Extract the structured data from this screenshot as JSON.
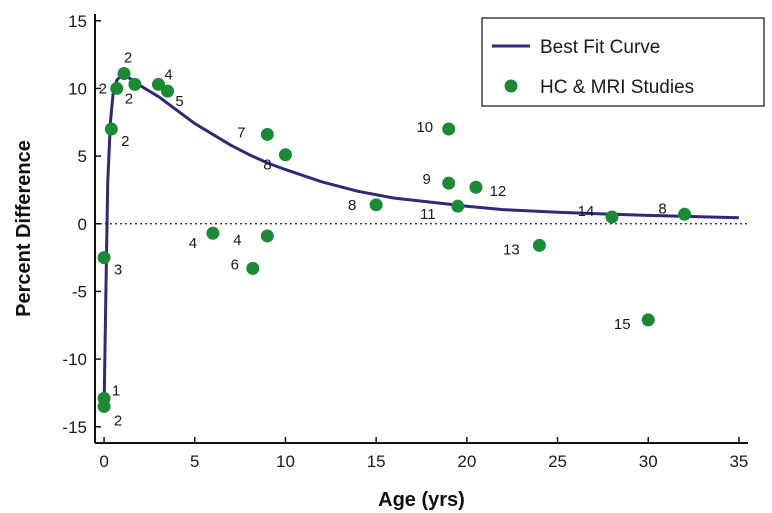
{
  "chart_data": {
    "type": "scatter",
    "xlabel": "Age (yrs)",
    "ylabel": "Percent Difference",
    "xlim": [
      -0.5,
      35.5
    ],
    "ylim": [
      -16.2,
      15.5
    ],
    "x_ticks": [
      0,
      5,
      10,
      15,
      20,
      25,
      30,
      35
    ],
    "y_ticks": [
      -15,
      -10,
      -5,
      0,
      5,
      10,
      15
    ],
    "zero_line": true,
    "grid": false,
    "legend_position": "top-right",
    "colors": {
      "curve": "#2e2a78",
      "points": "#1a8a35",
      "axis": "#111111"
    },
    "series": [
      {
        "name": "Best Fit Curve",
        "kind": "line",
        "x": [
          0,
          0.1,
          0.2,
          0.35,
          0.5,
          0.7,
          0.9,
          1.2,
          1.6,
          2,
          3,
          4,
          5,
          6,
          7,
          8,
          9,
          10,
          12,
          14,
          16,
          18,
          20,
          22,
          25,
          28,
          31,
          35
        ],
        "y": [
          -13.5,
          -5,
          3,
          7.5,
          9.6,
          10.6,
          10.9,
          10.9,
          10.6,
          10.2,
          9.4,
          8.4,
          7.4,
          6.6,
          5.8,
          5.1,
          4.5,
          4.0,
          3.1,
          2.4,
          1.9,
          1.6,
          1.3,
          1.05,
          0.85,
          0.7,
          0.58,
          0.45
        ]
      },
      {
        "name": "HC & MRI Studies",
        "kind": "scatter",
        "points": [
          {
            "x": 0.7,
            "y": 10,
            "label": "2"
          },
          {
            "x": 1.1,
            "y": 11.1,
            "label": "2"
          },
          {
            "x": 1.7,
            "y": 10.3,
            "label": "2"
          },
          {
            "x": 3,
            "y": 10.3,
            "label": "4"
          },
          {
            "x": 3.5,
            "y": 9.8,
            "label": "5"
          },
          {
            "x": 0.4,
            "y": 7,
            "label": "2"
          },
          {
            "x": 0,
            "y": -2.5,
            "label": "3"
          },
          {
            "x": 0,
            "y": -12.9,
            "label": "1"
          },
          {
            "x": 0,
            "y": -13.5,
            "label": "2"
          },
          {
            "x": 6,
            "y": -0.7,
            "label": "4"
          },
          {
            "x": 9,
            "y": 6.6,
            "label": "7"
          },
          {
            "x": 10,
            "y": 5.1,
            "label": "8"
          },
          {
            "x": 9,
            "y": -0.9,
            "label": "4"
          },
          {
            "x": 8.2,
            "y": -3.3,
            "label": "6"
          },
          {
            "x": 15,
            "y": 1.4,
            "label": "8"
          },
          {
            "x": 19,
            "y": 7,
            "label": "10"
          },
          {
            "x": 19,
            "y": 3,
            "label": "9"
          },
          {
            "x": 20.5,
            "y": 2.7,
            "label": "12"
          },
          {
            "x": 19.5,
            "y": 1.3,
            "label": "11"
          },
          {
            "x": 24,
            "y": -1.6,
            "label": "13"
          },
          {
            "x": 28,
            "y": 0.5,
            "label": "14"
          },
          {
            "x": 32,
            "y": 0.7,
            "label": "8"
          },
          {
            "x": 30,
            "y": -7.1,
            "label": "15"
          }
        ]
      }
    ]
  }
}
